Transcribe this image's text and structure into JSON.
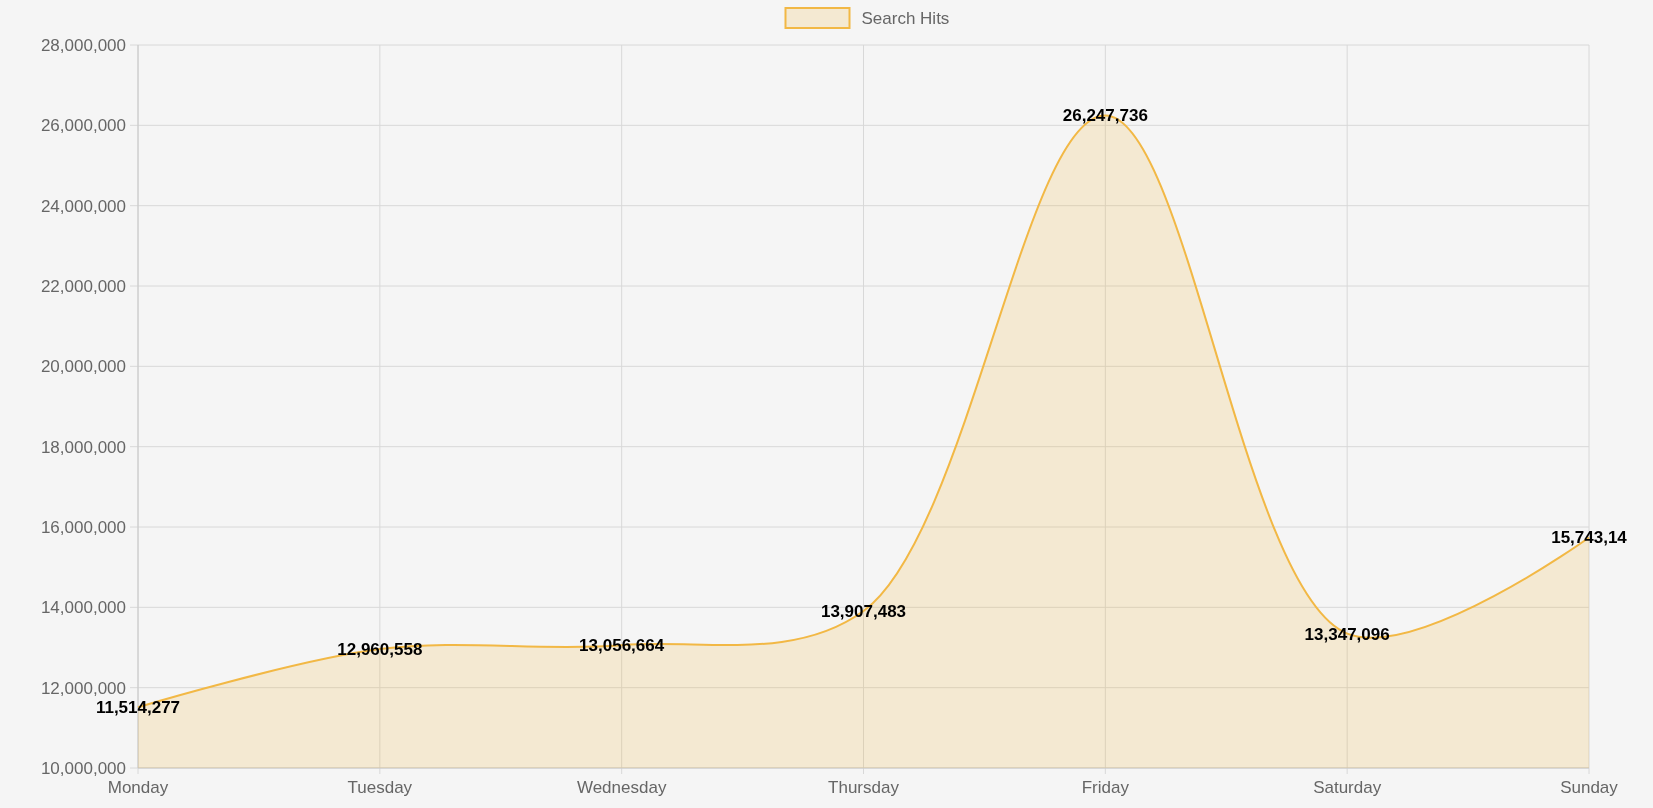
{
  "chart_data": {
    "type": "area",
    "categories": [
      "Monday",
      "Tuesday",
      "Wednesday",
      "Thursday",
      "Friday",
      "Saturday",
      "Sunday"
    ],
    "series": [
      {
        "name": "Search Hits",
        "color": "#f2b845",
        "values": [
          11514277,
          12960558,
          13056664,
          13907483,
          26247736,
          13347096,
          15740000
        ],
        "value_labels": [
          "11,514,277",
          "12,960,558",
          "13,056,664",
          "13,907,483",
          "26,247,736",
          "13,347,096",
          "15,743,14"
        ]
      }
    ],
    "ylim": [
      10000000,
      28000000
    ],
    "yticks": [
      {
        "value": 10000000,
        "label": "10,000,000"
      },
      {
        "value": 12000000,
        "label": "12,000,000"
      },
      {
        "value": 14000000,
        "label": "14,000,000"
      },
      {
        "value": 16000000,
        "label": "16,000,000"
      },
      {
        "value": 18000000,
        "label": "18,000,000"
      },
      {
        "value": 20000000,
        "label": "20,000,000"
      },
      {
        "value": 22000000,
        "label": "22,000,000"
      },
      {
        "value": 24000000,
        "label": "24,000,000"
      },
      {
        "value": 26000000,
        "label": "26,000,000"
      },
      {
        "value": 28000000,
        "label": "28,000,000"
      }
    ],
    "grid": true,
    "legend": "top"
  }
}
